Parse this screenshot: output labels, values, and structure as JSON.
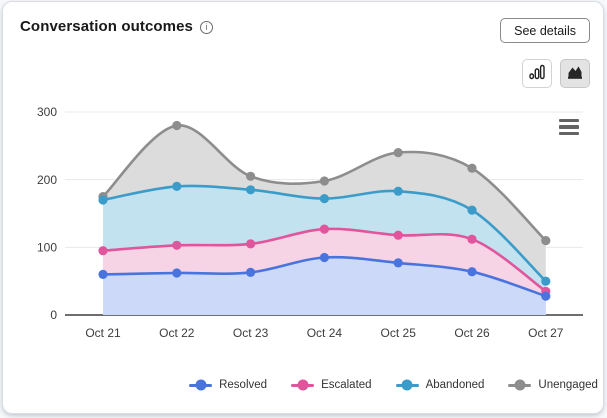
{
  "header": {
    "title": "Conversation outcomes",
    "info_glyph": "i",
    "see_details_label": "See details"
  },
  "toolbar": {
    "chart_type_options": [
      "bar",
      "area"
    ],
    "selected": "area"
  },
  "colors": {
    "resolved": "#4a74dd",
    "escalated": "#e0559c",
    "abandoned": "#3b9cc9",
    "unengaged": "#8d8d8d"
  },
  "chart_data": {
    "type": "area",
    "title": "Conversation outcomes",
    "categories": [
      "Oct 21",
      "Oct 22",
      "Oct 23",
      "Oct 24",
      "Oct 25",
      "Oct 26",
      "Oct 27"
    ],
    "series": [
      {
        "name": "Resolved",
        "color": "#4a74dd",
        "fill": "#ccd9f9",
        "values": [
          60,
          62,
          63,
          85,
          77,
          64,
          28
        ]
      },
      {
        "name": "Escalated",
        "color": "#e0559c",
        "fill": "#f6d4e6",
        "values": [
          95,
          103,
          105,
          127,
          118,
          112,
          35
        ]
      },
      {
        "name": "Abandoned",
        "color": "#3b9cc9",
        "fill": "#c3e2ef",
        "values": [
          170,
          190,
          185,
          172,
          183,
          155,
          50
        ]
      },
      {
        "name": "Unengaged",
        "color": "#8d8d8d",
        "fill": "#dcdcdc",
        "values": [
          175,
          280,
          205,
          198,
          240,
          217,
          110
        ]
      }
    ],
    "xlabel": "",
    "ylabel": "",
    "ylim": [
      0,
      300
    ],
    "yticks": [
      0,
      100,
      200,
      300
    ],
    "grid": true,
    "smooth": true,
    "legend_position": "bottom"
  }
}
